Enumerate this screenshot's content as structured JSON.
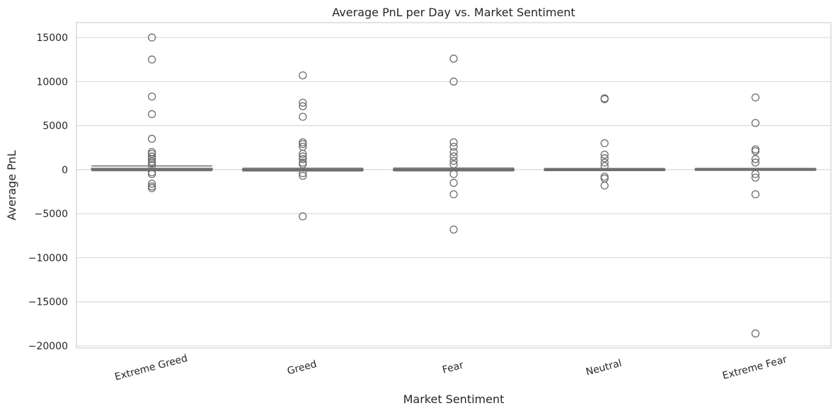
{
  "chart_data": {
    "type": "box",
    "title": "Average PnL per Day vs. Market Sentiment",
    "x_label": "Market Sentiment",
    "y_label": "Average PnL",
    "categories": [
      "Extreme Greed",
      "Greed",
      "Fear",
      "Neutral",
      "Extreme Fear"
    ],
    "color": "#6e6e6e",
    "grid": true,
    "ylim": [
      -20240,
      16690
    ],
    "yticks": [
      {
        "value": -20000,
        "label": "−20000"
      },
      {
        "value": -15000,
        "label": "−15000"
      },
      {
        "value": -10000,
        "label": "−10000"
      },
      {
        "value": -5000,
        "label": "−5000"
      },
      0,
      5000,
      10000,
      15000
    ],
    "boxes": [
      {
        "whislo": -120,
        "q1": -10,
        "med": 40,
        "q3": 150,
        "whishi": 420,
        "fliers": [
          15000,
          12500,
          8300,
          6300,
          3500,
          2000,
          1800,
          1500,
          1200,
          900,
          700,
          500,
          -300,
          -500,
          -1600,
          -1900,
          -2100
        ]
      },
      {
        "whislo": -150,
        "q1": -40,
        "med": 0,
        "q3": 40,
        "whishi": 160,
        "fliers": [
          10700,
          7600,
          7200,
          6000,
          3100,
          2900,
          2600,
          1800,
          1500,
          1200,
          800,
          600,
          -400,
          -700,
          -5300
        ]
      },
      {
        "whislo": -140,
        "q1": -30,
        "med": 0,
        "q3": 50,
        "whishi": 180,
        "fliers": [
          12600,
          10000,
          3100,
          2600,
          2000,
          1500,
          1000,
          600,
          -500,
          -1500,
          -2800,
          -6800
        ]
      },
      {
        "whislo": -110,
        "q1": -30,
        "med": 0,
        "q3": 40,
        "whishi": 130,
        "fliers": [
          8100,
          8000,
          3000,
          1700,
          1300,
          800,
          400,
          -800,
          -1000,
          -1800
        ]
      },
      {
        "whislo": -80,
        "q1": -20,
        "med": 10,
        "q3": 60,
        "whishi": 140,
        "fliers": [
          8200,
          5300,
          2300,
          2100,
          1200,
          800,
          -500,
          -900,
          -2800,
          -18600
        ]
      }
    ]
  }
}
